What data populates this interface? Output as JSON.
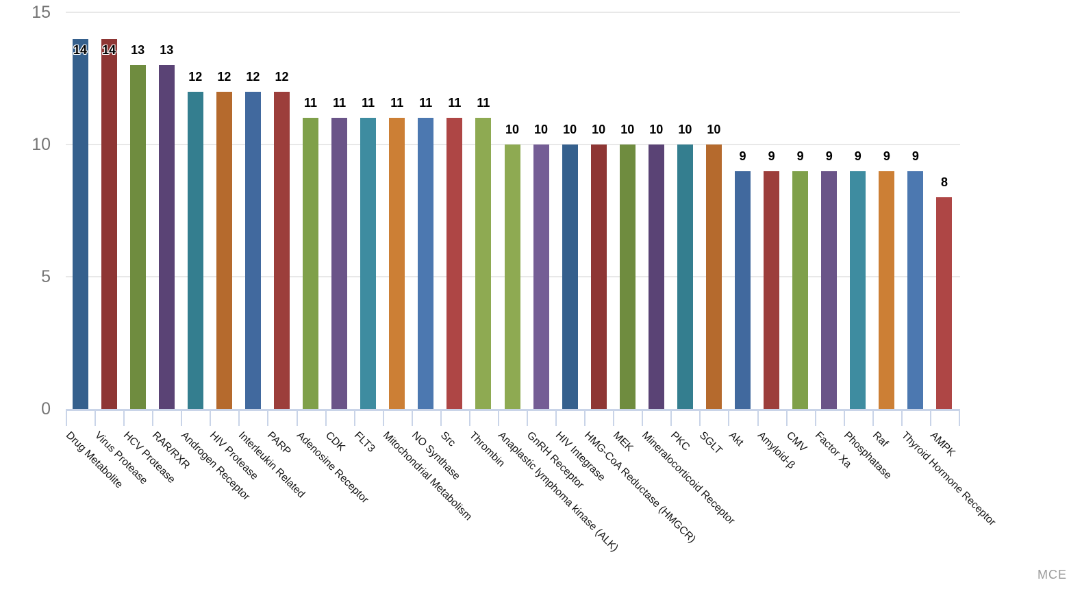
{
  "chart_data": {
    "type": "bar",
    "title": "",
    "xlabel": "",
    "ylabel": "",
    "ylim": [
      0,
      15
    ],
    "yticks": [
      0,
      5,
      10,
      15
    ],
    "grid": true,
    "legend_position": "none",
    "value_labels_shown": true,
    "watermark": "MCE",
    "categories": [
      "Drug Metabolite",
      "Virus Protease",
      "HCV Protease",
      "RAR/RXR",
      "Androgen Receptor",
      "HIV Protease",
      "Interleukin Related",
      "PARP",
      "Adenosine Receptor",
      "CDK",
      "FLT3",
      "Mitochondrial Metabolism",
      "NO Synthase",
      "Src",
      "Thrombin",
      "Anaplastic lymphoma kinase (ALK)",
      "GnRH Receptor",
      "HIV Integrase",
      "HMG-CoA Reductase (HMGCR)",
      "MEK",
      "Mineralocorticoid Receptor",
      "PKC",
      "SGLT",
      "Akt",
      "Amyloid-β",
      "CMV",
      "Factor Xa",
      "Phosphatase",
      "Raf",
      "Thyroid Hormone Receptor",
      "AMPK"
    ],
    "values": [
      14,
      14,
      13,
      13,
      12,
      12,
      12,
      12,
      11,
      11,
      11,
      11,
      11,
      11,
      11,
      10,
      10,
      10,
      10,
      10,
      10,
      10,
      10,
      9,
      9,
      9,
      9,
      9,
      9,
      9,
      8
    ],
    "bar_colors": [
      "#35608D",
      "#8E3634",
      "#6F8C3F",
      "#5A4375",
      "#347E8F",
      "#B56A2D",
      "#41699E",
      "#9C3E3B",
      "#7FA04A",
      "#6A5488",
      "#3E8CA0",
      "#CC7F35",
      "#4C78B0",
      "#AE4645",
      "#8EAA52",
      "#8EAA52",
      "#745D95",
      "#35608D",
      "#8E3634",
      "#6F8C3F",
      "#5A4375",
      "#347E8F",
      "#B56A2D",
      "#41699E",
      "#9C3E3B",
      "#7FA04A",
      "#6A5488",
      "#3E8CA0",
      "#CC7F35",
      "#4C78B0",
      "#AE4645"
    ]
  },
  "colors": {
    "background": "#FFFFFF",
    "gridline": "#E8E8E8",
    "axis_line": "#C9D4E8",
    "ytick_label": "#757575",
    "value_label": "#000000",
    "category_label": "#141414",
    "watermark": "#9B9B9B"
  }
}
